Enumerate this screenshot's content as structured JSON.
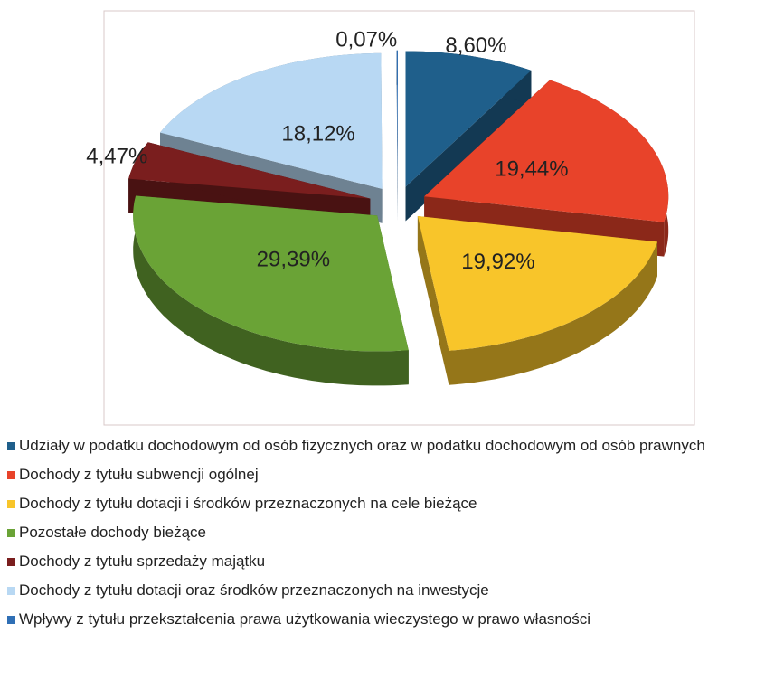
{
  "chart_data": {
    "type": "pie",
    "categories": [
      "Udziały w podatku dochodowym od osób fizycznych oraz w podatku dochodowym od osób prawnych",
      "Dochody z tytułu subwencji ogólnej",
      "Dochody z tytułu dotacji i środków przeznaczonych na cele bieżące",
      "Pozostałe dochody bieżące",
      "Dochody z tytułu sprzedaży majątku",
      "Dochody z tytułu dotacji oraz środków przeznaczonych na inwestycje",
      "Wpływy z tytułu przekształcenia prawa użytkowania wieczystego w prawo własności"
    ],
    "values": [
      8.6,
      19.44,
      19.92,
      29.39,
      4.47,
      18.12,
      0.07
    ],
    "value_labels": [
      "8,60%",
      "19,44%",
      "19,92%",
      "29,39%",
      "4,47%",
      "18,12%",
      "0,07%"
    ],
    "colors": [
      "#1f5f8b",
      "#e8432a",
      "#f8c52a",
      "#6aa336",
      "#7a1e1e",
      "#b8d8f3",
      "#2f6fb5"
    ],
    "legend": "bottom"
  }
}
